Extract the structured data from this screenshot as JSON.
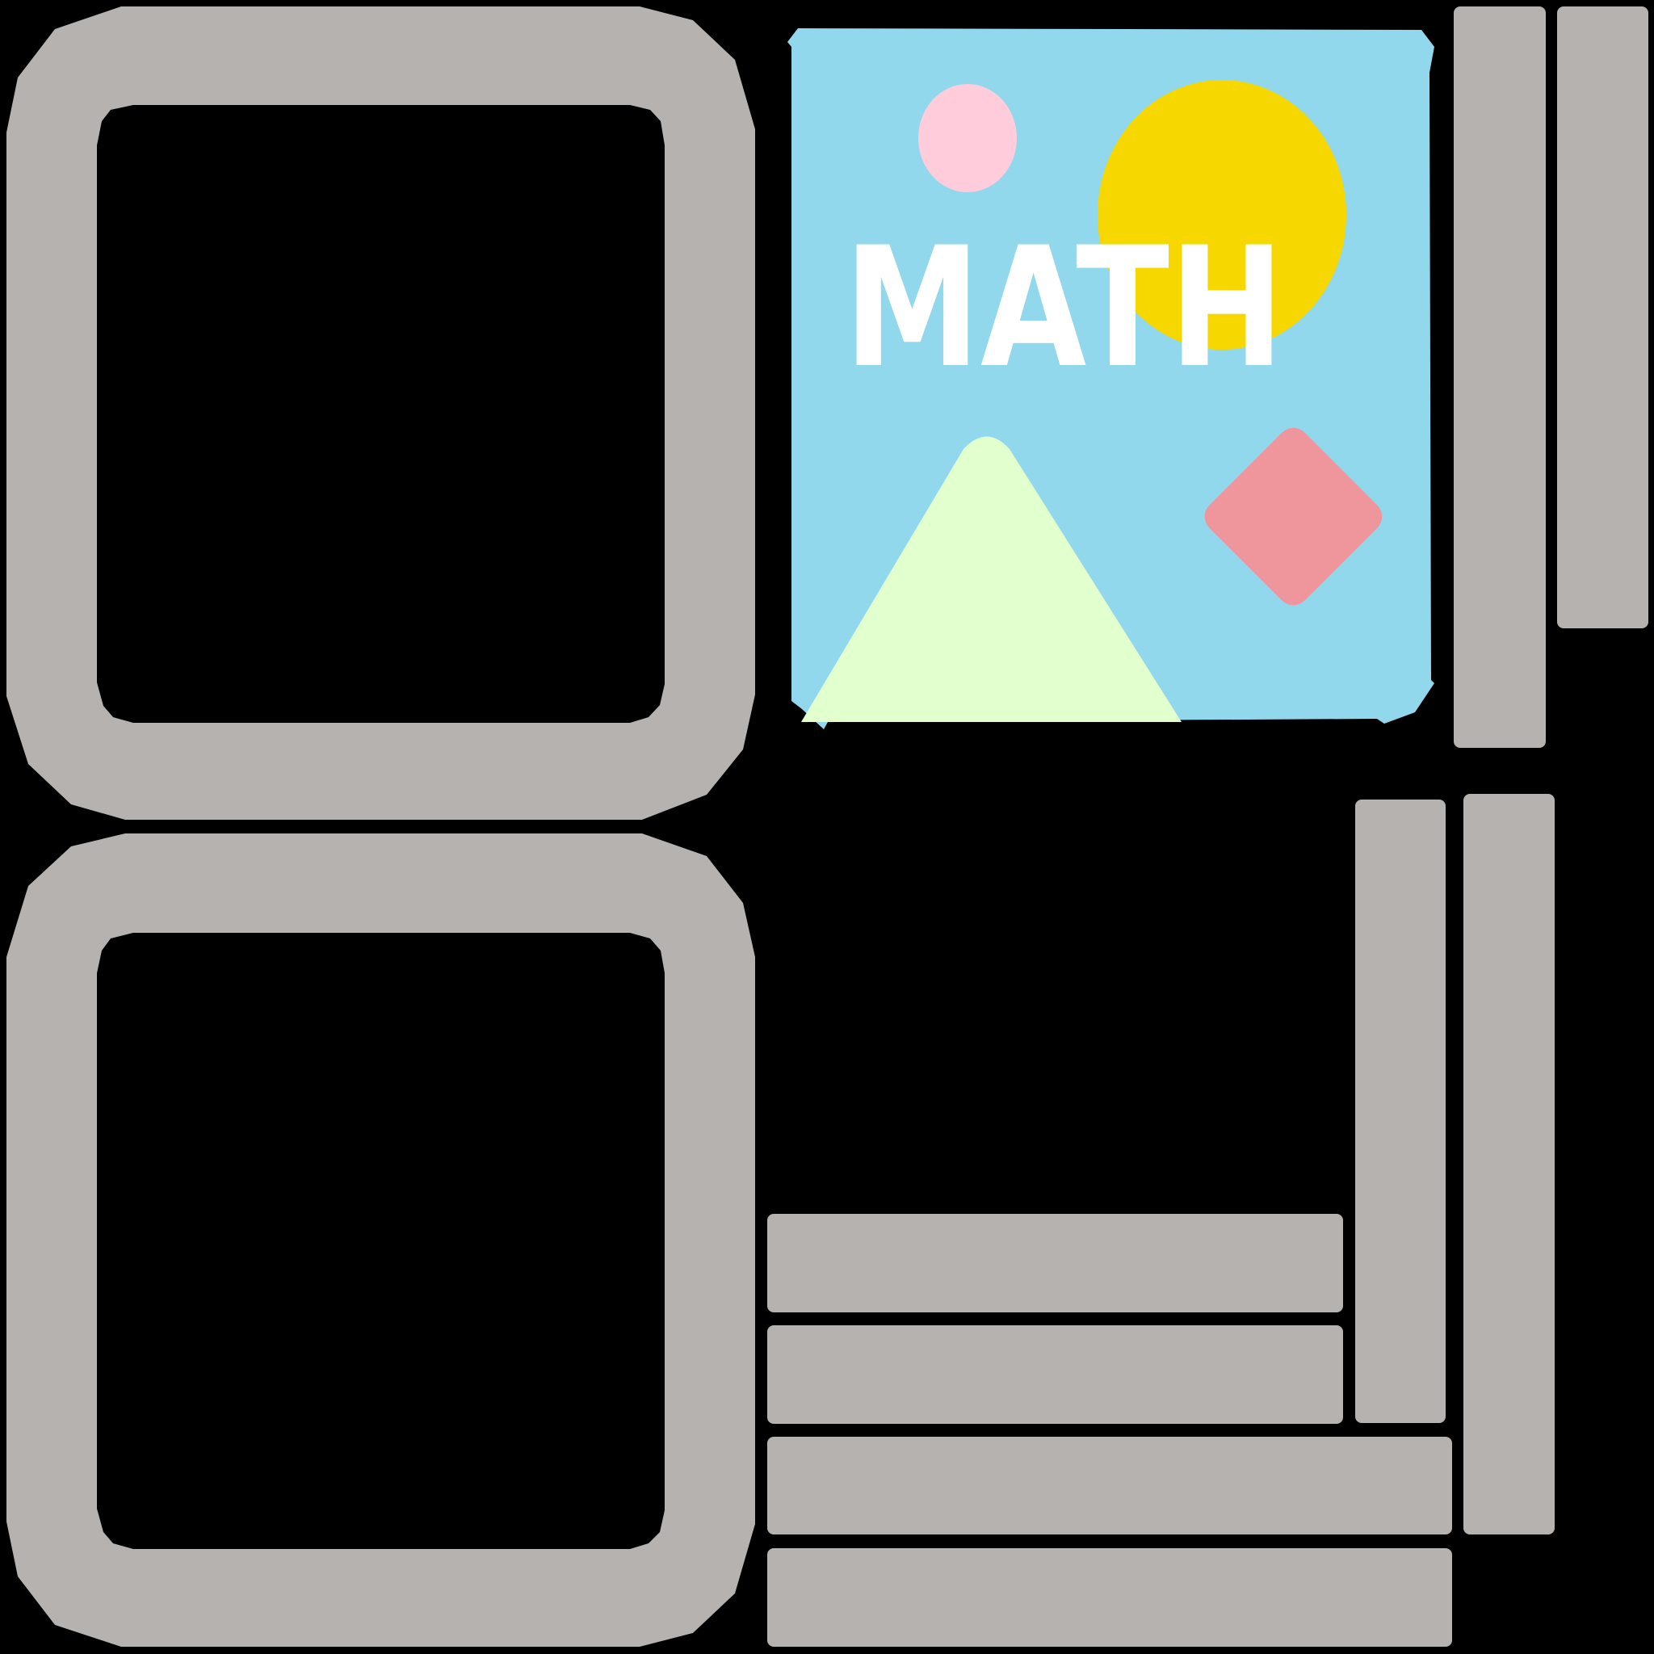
{
  "cover": {
    "title": "MATH",
    "shapes": [
      "pink-circle",
      "yellow-circle",
      "green-triangle",
      "red-diamond"
    ]
  },
  "colors": {
    "background": "#000000",
    "frame_gray": "#B5B2B0",
    "cover_sky": "#92D8EC",
    "pink": "#FFCCDC",
    "yellow": "#F6D800",
    "green": "#E2FFCE",
    "red": "#EF969D",
    "white": "#FFFFFF"
  }
}
